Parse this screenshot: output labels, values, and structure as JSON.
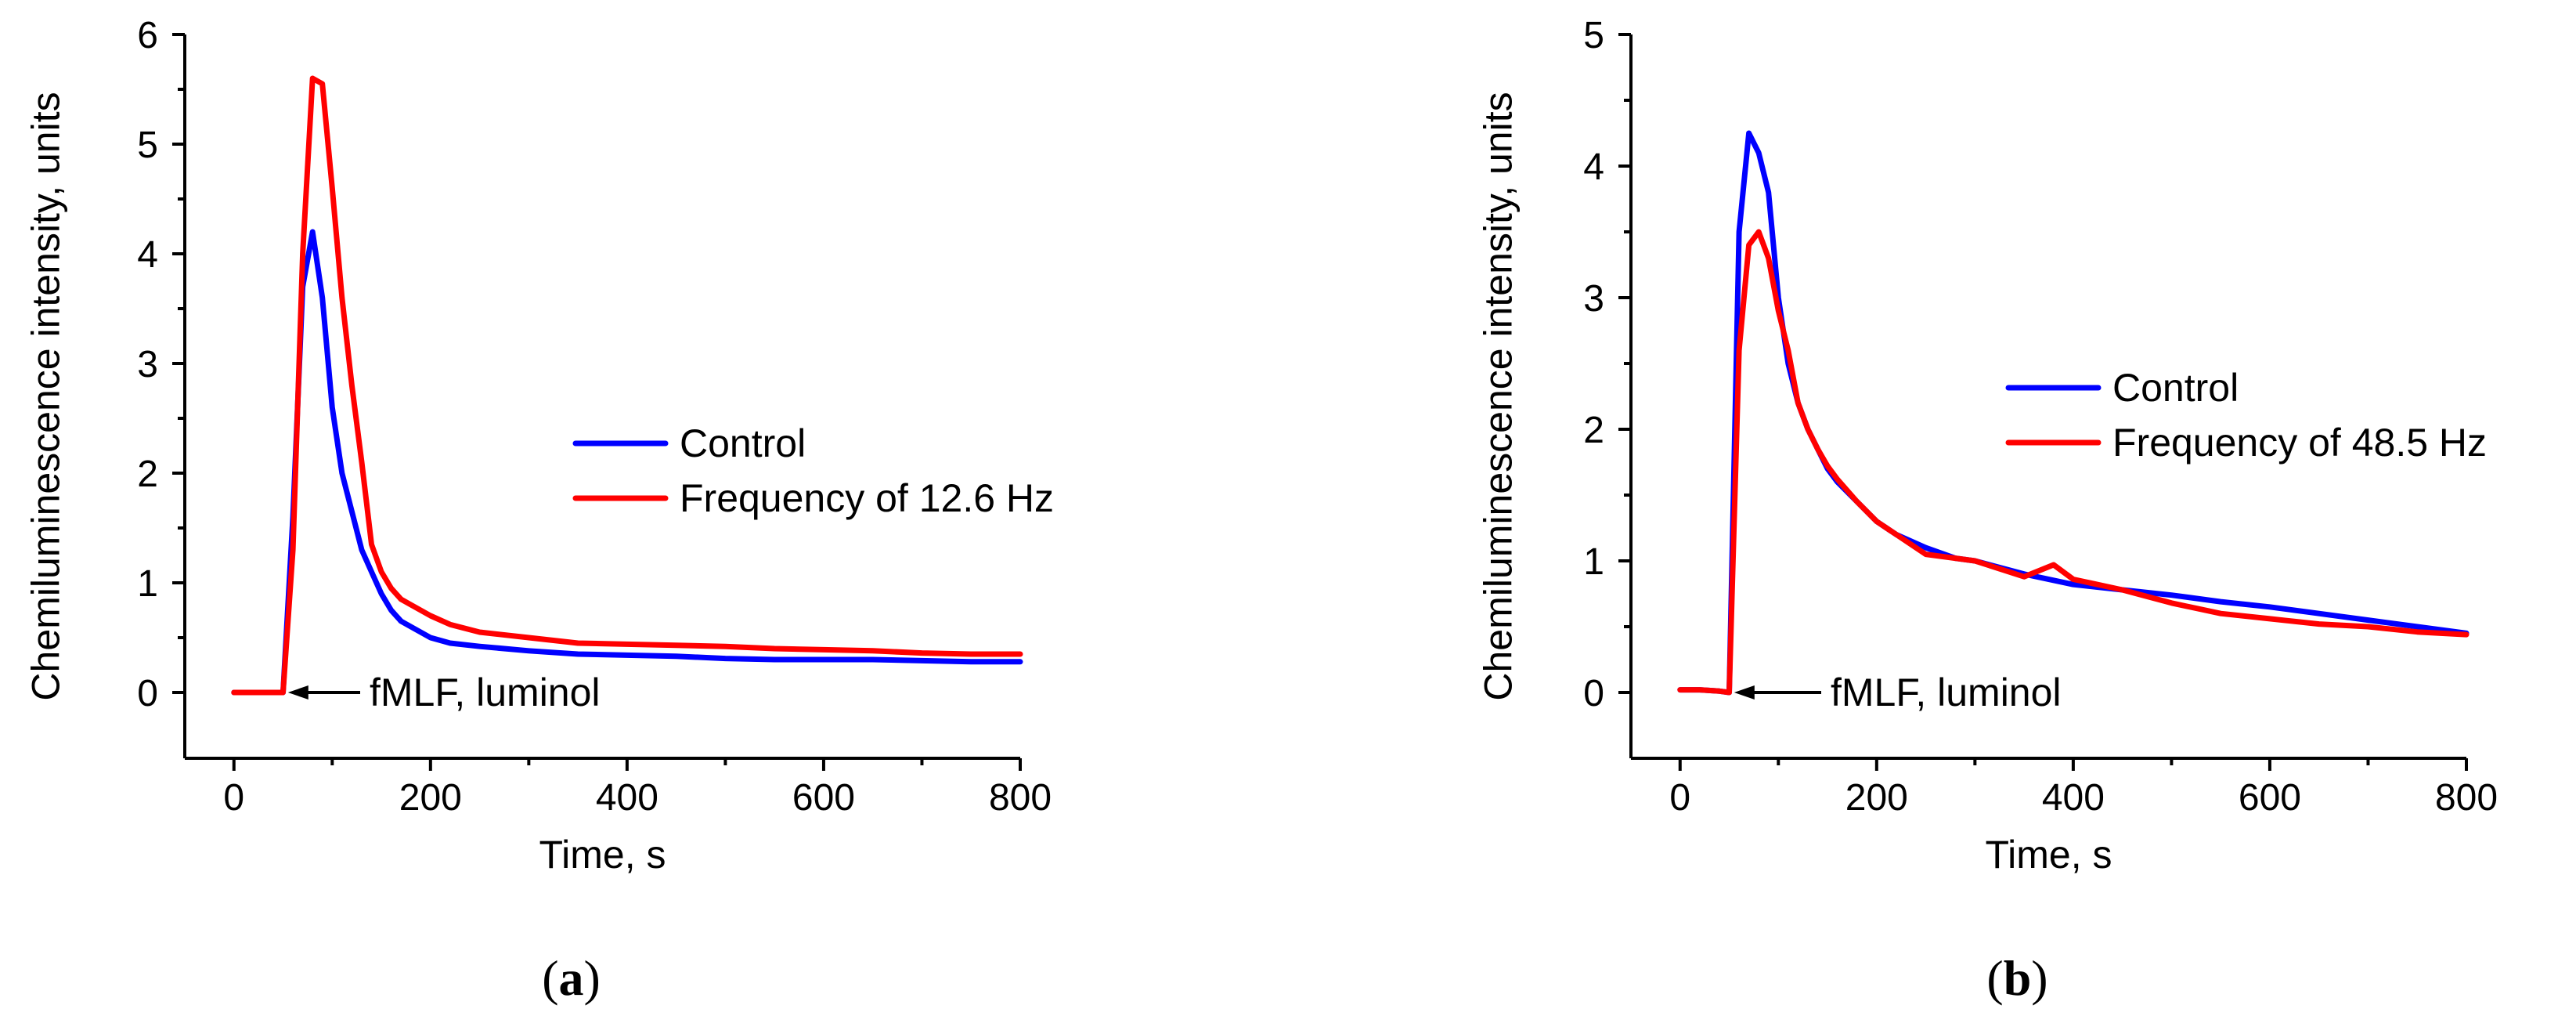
{
  "chart_data": [
    {
      "type": "line",
      "panel_label": "(a)",
      "panel_letter": "a",
      "xlabel": "Time, s",
      "ylabel": "Chemiluminescence intensity, units",
      "xlim": [
        -50,
        800
      ],
      "ylim": [
        -0.6,
        6
      ],
      "xticks": [
        0,
        200,
        400,
        600,
        800
      ],
      "yticks": [
        0,
        1,
        2,
        3,
        4,
        5,
        6
      ],
      "annotation": {
        "text": "fMLF, luminol",
        "x": 55,
        "y": 0
      },
      "legend_position": "center-right",
      "series": [
        {
          "name": "Control",
          "color": "#0000ff",
          "x": [
            0,
            20,
            40,
            50,
            60,
            70,
            80,
            90,
            100,
            110,
            120,
            130,
            140,
            150,
            160,
            170,
            180,
            200,
            220,
            250,
            300,
            350,
            400,
            450,
            500,
            550,
            600,
            650,
            700,
            750,
            800
          ],
          "y": [
            0,
            0,
            0,
            0,
            1.6,
            3.7,
            4.2,
            3.6,
            2.6,
            2.0,
            1.65,
            1.3,
            1.1,
            0.9,
            0.75,
            0.65,
            0.6,
            0.5,
            0.45,
            0.42,
            0.38,
            0.35,
            0.34,
            0.33,
            0.31,
            0.3,
            0.3,
            0.3,
            0.29,
            0.28,
            0.28
          ]
        },
        {
          "name": "Frequency of 12.6 Hz",
          "color": "#ff0000",
          "x": [
            0,
            20,
            40,
            50,
            60,
            70,
            80,
            90,
            100,
            110,
            120,
            130,
            140,
            150,
            160,
            170,
            180,
            200,
            220,
            250,
            300,
            350,
            400,
            450,
            500,
            550,
            600,
            650,
            700,
            750,
            800
          ],
          "y": [
            0,
            0,
            0,
            0,
            1.3,
            4.0,
            5.6,
            5.55,
            4.6,
            3.6,
            2.8,
            2.1,
            1.35,
            1.1,
            0.95,
            0.85,
            0.8,
            0.7,
            0.62,
            0.55,
            0.5,
            0.45,
            0.44,
            0.43,
            0.42,
            0.4,
            0.39,
            0.38,
            0.36,
            0.35,
            0.35
          ]
        }
      ]
    },
    {
      "type": "line",
      "panel_label": "(b)",
      "panel_letter": "b",
      "xlabel": "Time, s",
      "ylabel": "Chemiluminescence intensity, units",
      "xlim": [
        -50,
        800
      ],
      "ylim": [
        -0.5,
        5
      ],
      "xticks": [
        0,
        200,
        400,
        600,
        800
      ],
      "yticks": [
        0,
        1,
        2,
        3,
        4,
        5
      ],
      "annotation": {
        "text": "fMLF, luminol",
        "x": 55,
        "y": 0
      },
      "legend_position": "center-right",
      "series": [
        {
          "name": "Control",
          "color": "#0000ff",
          "x": [
            0,
            20,
            40,
            50,
            60,
            70,
            80,
            90,
            100,
            110,
            120,
            130,
            140,
            150,
            160,
            180,
            200,
            220,
            250,
            280,
            300,
            350,
            400,
            450,
            500,
            550,
            600,
            650,
            700,
            750,
            800
          ],
          "y": [
            0.02,
            0.02,
            0.01,
            0.0,
            3.5,
            4.25,
            4.1,
            3.8,
            3.0,
            2.5,
            2.2,
            2.0,
            1.85,
            1.7,
            1.6,
            1.45,
            1.3,
            1.2,
            1.1,
            1.02,
            1.0,
            0.9,
            0.82,
            0.78,
            0.74,
            0.69,
            0.65,
            0.6,
            0.55,
            0.5,
            0.45
          ]
        },
        {
          "name": "Frequency of 48.5 Hz",
          "color": "#ff0000",
          "x": [
            0,
            20,
            40,
            50,
            60,
            70,
            80,
            90,
            100,
            110,
            120,
            130,
            140,
            150,
            160,
            180,
            200,
            220,
            250,
            280,
            300,
            350,
            380,
            400,
            450,
            500,
            550,
            600,
            650,
            700,
            750,
            800
          ],
          "y": [
            0.02,
            0.02,
            0.01,
            0.0,
            2.6,
            3.4,
            3.5,
            3.3,
            2.9,
            2.6,
            2.2,
            2.0,
            1.85,
            1.72,
            1.62,
            1.45,
            1.3,
            1.2,
            1.05,
            1.02,
            1.0,
            0.88,
            0.97,
            0.86,
            0.78,
            0.68,
            0.6,
            0.56,
            0.52,
            0.5,
            0.46,
            0.44
          ]
        }
      ]
    }
  ]
}
